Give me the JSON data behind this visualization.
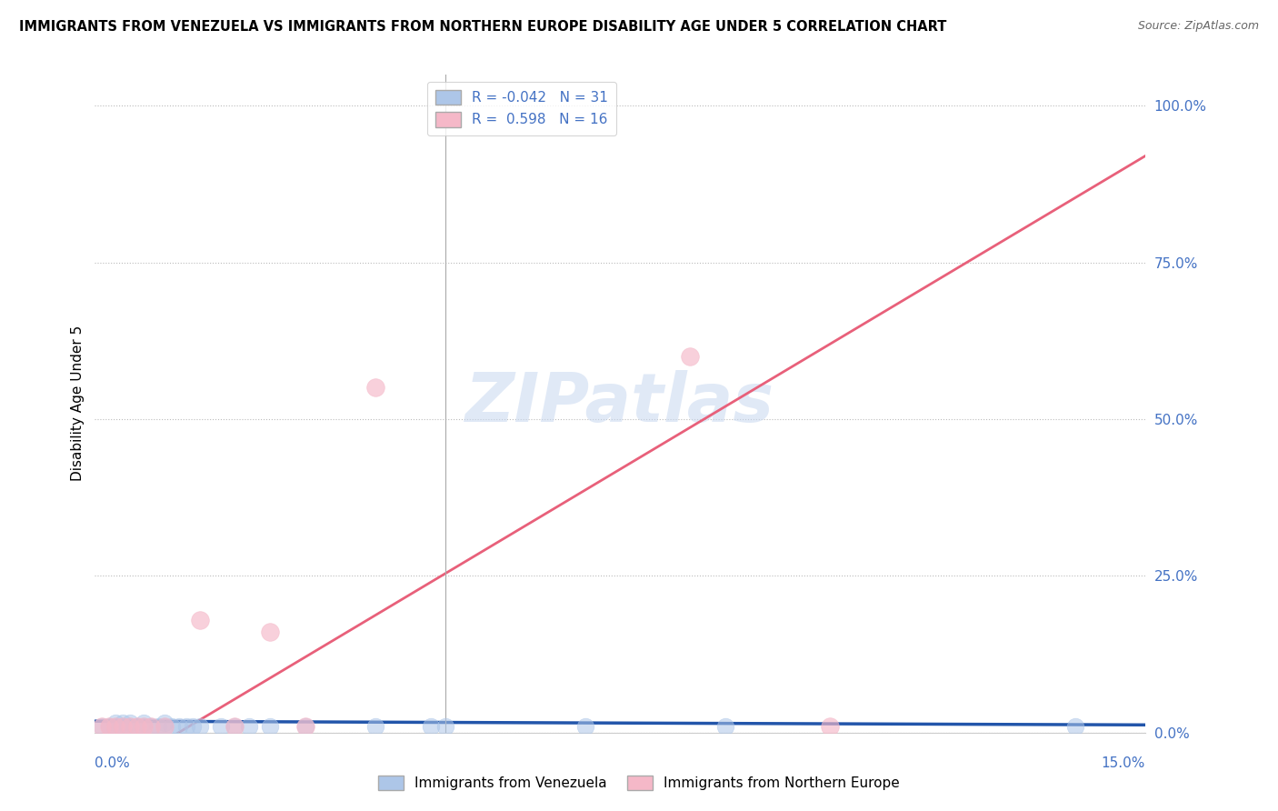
{
  "title": "IMMIGRANTS FROM VENEZUELA VS IMMIGRANTS FROM NORTHERN EUROPE DISABILITY AGE UNDER 5 CORRELATION CHART",
  "source": "Source: ZipAtlas.com",
  "y_ticks": [
    0.0,
    25.0,
    50.0,
    75.0,
    100.0
  ],
  "x_lim": [
    0.0,
    0.15
  ],
  "y_lim": [
    0.0,
    1.05
  ],
  "series_labels": [
    "Immigrants from Venezuela",
    "Immigrants from Northern Europe"
  ],
  "venezuela_color": "#adc6e8",
  "northern_europe_color": "#f5b8c8",
  "venezuela_line_color": "#2255aa",
  "northern_europe_line_color": "#e8607a",
  "watermark": "ZIPatlas",
  "watermark_color": "#c8d8f0",
  "R_venezuela": -0.042,
  "N_venezuela": 31,
  "R_northern_europe": 0.598,
  "N_northern_europe": 16,
  "venezuela_points_x": [
    0.001,
    0.002,
    0.003,
    0.003,
    0.004,
    0.004,
    0.005,
    0.005,
    0.006,
    0.007,
    0.007,
    0.008,
    0.009,
    0.01,
    0.01,
    0.011,
    0.012,
    0.013,
    0.014,
    0.015,
    0.018,
    0.02,
    0.022,
    0.025,
    0.03,
    0.04,
    0.048,
    0.05,
    0.07,
    0.09,
    0.14
  ],
  "venezuela_points_y": [
    0.01,
    0.01,
    0.01,
    0.015,
    0.01,
    0.015,
    0.01,
    0.015,
    0.01,
    0.01,
    0.015,
    0.01,
    0.01,
    0.01,
    0.015,
    0.01,
    0.01,
    0.01,
    0.01,
    0.01,
    0.01,
    0.01,
    0.01,
    0.01,
    0.01,
    0.01,
    0.01,
    0.01,
    0.01,
    0.01,
    0.01
  ],
  "northern_europe_points_x": [
    0.001,
    0.002,
    0.003,
    0.004,
    0.005,
    0.006,
    0.007,
    0.008,
    0.01,
    0.015,
    0.02,
    0.025,
    0.03,
    0.04,
    0.085,
    0.105
  ],
  "northern_europe_points_y": [
    0.01,
    0.01,
    0.01,
    0.01,
    0.01,
    0.01,
    0.01,
    0.01,
    0.01,
    0.18,
    0.01,
    0.16,
    0.01,
    0.55,
    0.6,
    0.01
  ],
  "ne_line_x0": 0.0,
  "ne_line_y0": -0.08,
  "ne_line_x1": 0.15,
  "ne_line_y1": 0.92,
  "ven_line_x0": 0.0,
  "ven_line_y0": 0.018,
  "ven_line_x1": 0.15,
  "ven_line_y1": 0.012,
  "vline_x": 0.05
}
